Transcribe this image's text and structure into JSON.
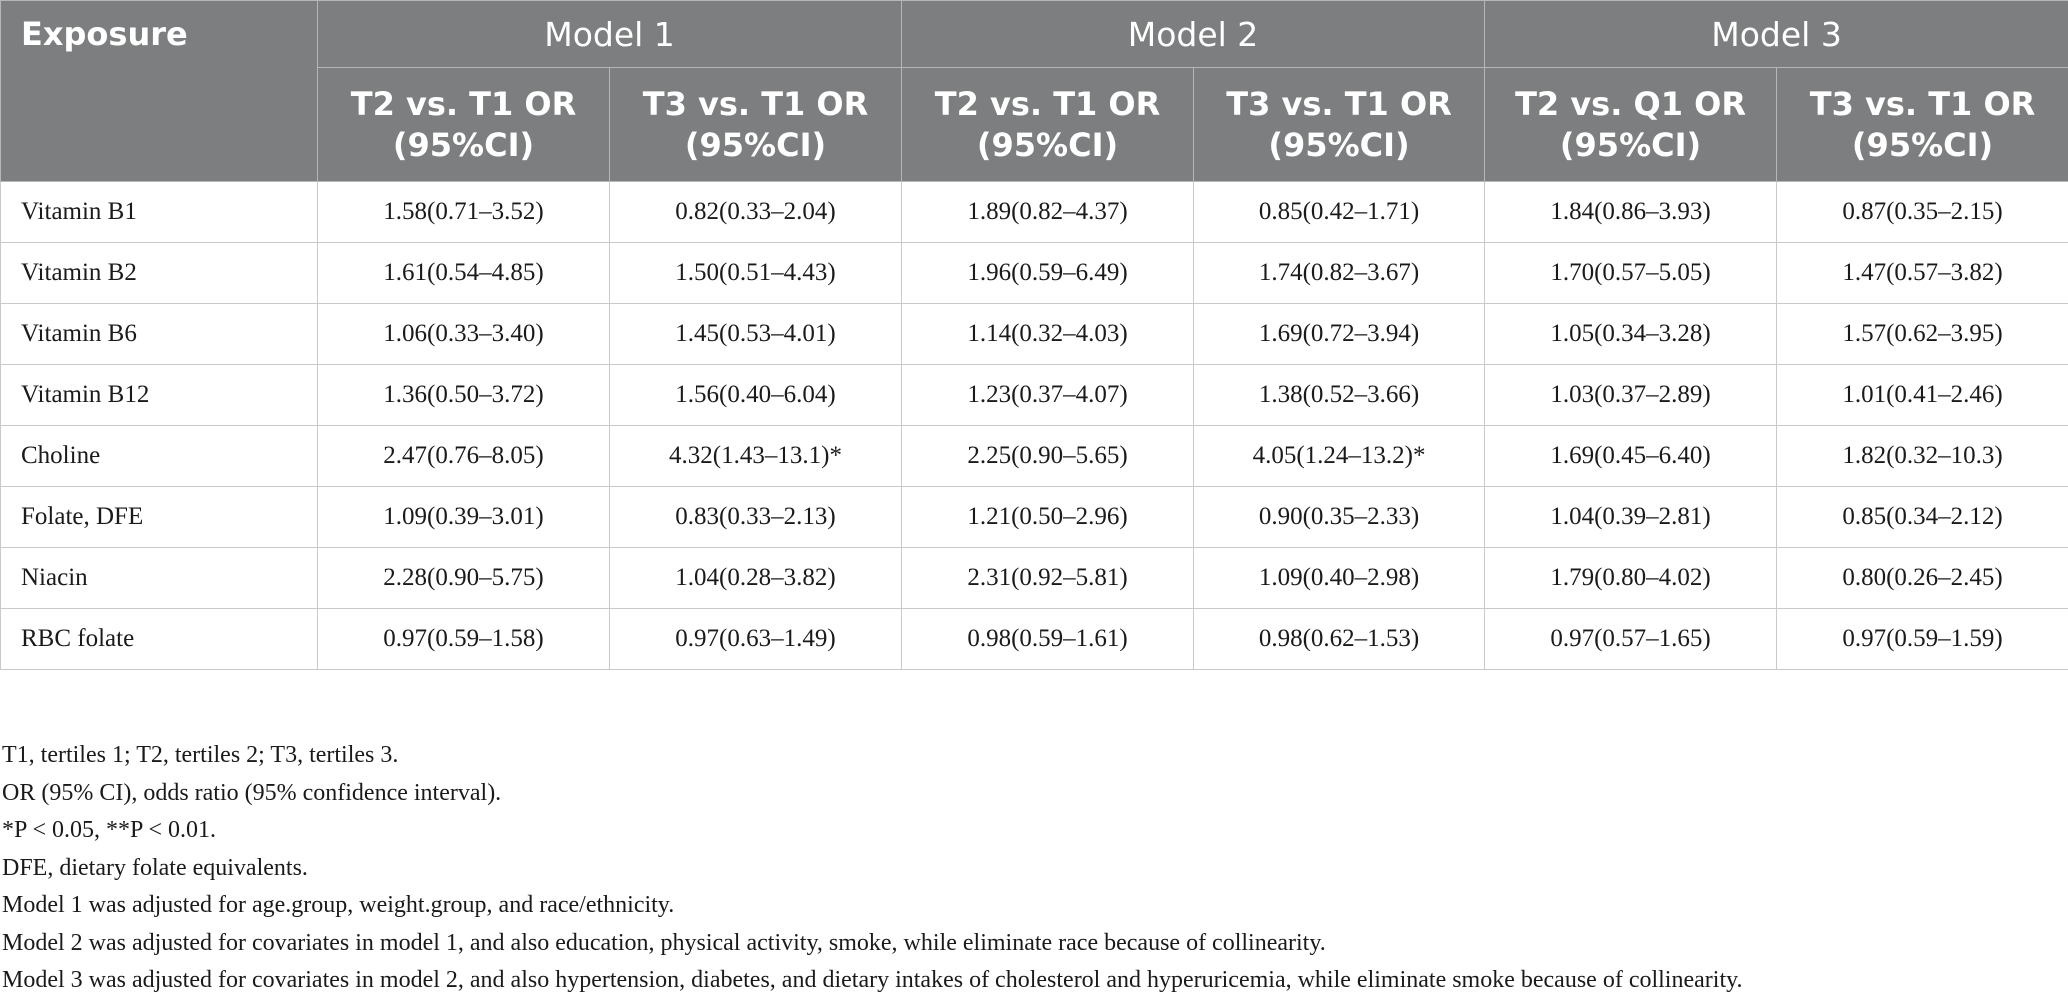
{
  "table": {
    "exposure_header": "Exposure",
    "models": [
      "Model 1",
      "Model 2",
      "Model 3"
    ],
    "subheaders": [
      [
        "T2 vs. T1 OR",
        "(95%CI)"
      ],
      [
        "T3 vs. T1 OR",
        "(95%CI)"
      ],
      [
        "T2 vs. T1 OR",
        "(95%CI)"
      ],
      [
        "T3 vs. T1 OR",
        "(95%CI)"
      ],
      [
        "T2 vs. Q1 OR",
        "(95%CI)"
      ],
      [
        "T3 vs. T1 OR",
        "(95%CI)"
      ]
    ],
    "rows": [
      {
        "name": "Vitamin B1",
        "values": [
          "1.58(0.71–3.52)",
          "0.82(0.33–2.04)",
          "1.89(0.82–4.37)",
          "0.85(0.42–1.71)",
          "1.84(0.86–3.93)",
          "0.87(0.35–2.15)"
        ]
      },
      {
        "name": "Vitamin B2",
        "values": [
          "1.61(0.54–4.85)",
          "1.50(0.51–4.43)",
          "1.96(0.59–6.49)",
          "1.74(0.82–3.67)",
          "1.70(0.57–5.05)",
          "1.47(0.57–3.82)"
        ]
      },
      {
        "name": "Vitamin B6",
        "values": [
          "1.06(0.33–3.40)",
          "1.45(0.53–4.01)",
          "1.14(0.32–4.03)",
          "1.69(0.72–3.94)",
          "1.05(0.34–3.28)",
          "1.57(0.62–3.95)"
        ]
      },
      {
        "name": "Vitamin B12",
        "values": [
          "1.36(0.50–3.72)",
          "1.56(0.40–6.04)",
          "1.23(0.37–4.07)",
          "1.38(0.52–3.66)",
          "1.03(0.37–2.89)",
          "1.01(0.41–2.46)"
        ]
      },
      {
        "name": "Choline",
        "values": [
          "2.47(0.76–8.05)",
          "4.32(1.43–13.1)*",
          "2.25(0.90–5.65)",
          "4.05(1.24–13.2)*",
          "1.69(0.45–6.40)",
          "1.82(0.32–10.3)"
        ]
      },
      {
        "name": "Folate, DFE",
        "values": [
          "1.09(0.39–3.01)",
          "0.83(0.33–2.13)",
          "1.21(0.50–2.96)",
          "0.90(0.35–2.33)",
          "1.04(0.39–2.81)",
          "0.85(0.34–2.12)"
        ]
      },
      {
        "name": "Niacin",
        "values": [
          "2.28(0.90–5.75)",
          "1.04(0.28–3.82)",
          "2.31(0.92–5.81)",
          "1.09(0.40–2.98)",
          "1.79(0.80–4.02)",
          "0.80(0.26–2.45)"
        ]
      },
      {
        "name": "RBC folate",
        "values": [
          "0.97(0.59–1.58)",
          "0.97(0.63–1.49)",
          "0.98(0.59–1.61)",
          "0.98(0.62–1.53)",
          "0.97(0.57–1.65)",
          "0.97(0.59–1.59)"
        ]
      }
    ]
  },
  "footnotes": [
    "T1, tertiles 1; T2, tertiles 2; T3, tertiles 3.",
    "OR (95% CI), odds ratio (95% confidence interval).",
    "*P < 0.05, **P < 0.01.",
    "DFE, dietary folate equivalents.",
    "Model 1 was adjusted for age.group, weight.group, and race/ethnicity.",
    "Model 2 was adjusted for covariates in model 1, and also education, physical activity, smoke, while eliminate race because of collinearity.",
    "Model 3 was adjusted for covariates in model 2, and also hypertension, diabetes, and dietary intakes of cholesterol and hyperuricemia, while eliminate smoke because of collinearity."
  ],
  "colors": {
    "header_background": "#7d7e7f",
    "header_text": "#ffffff",
    "body_text": "#1a1a1a",
    "grid_line": "#c9c9c9"
  }
}
